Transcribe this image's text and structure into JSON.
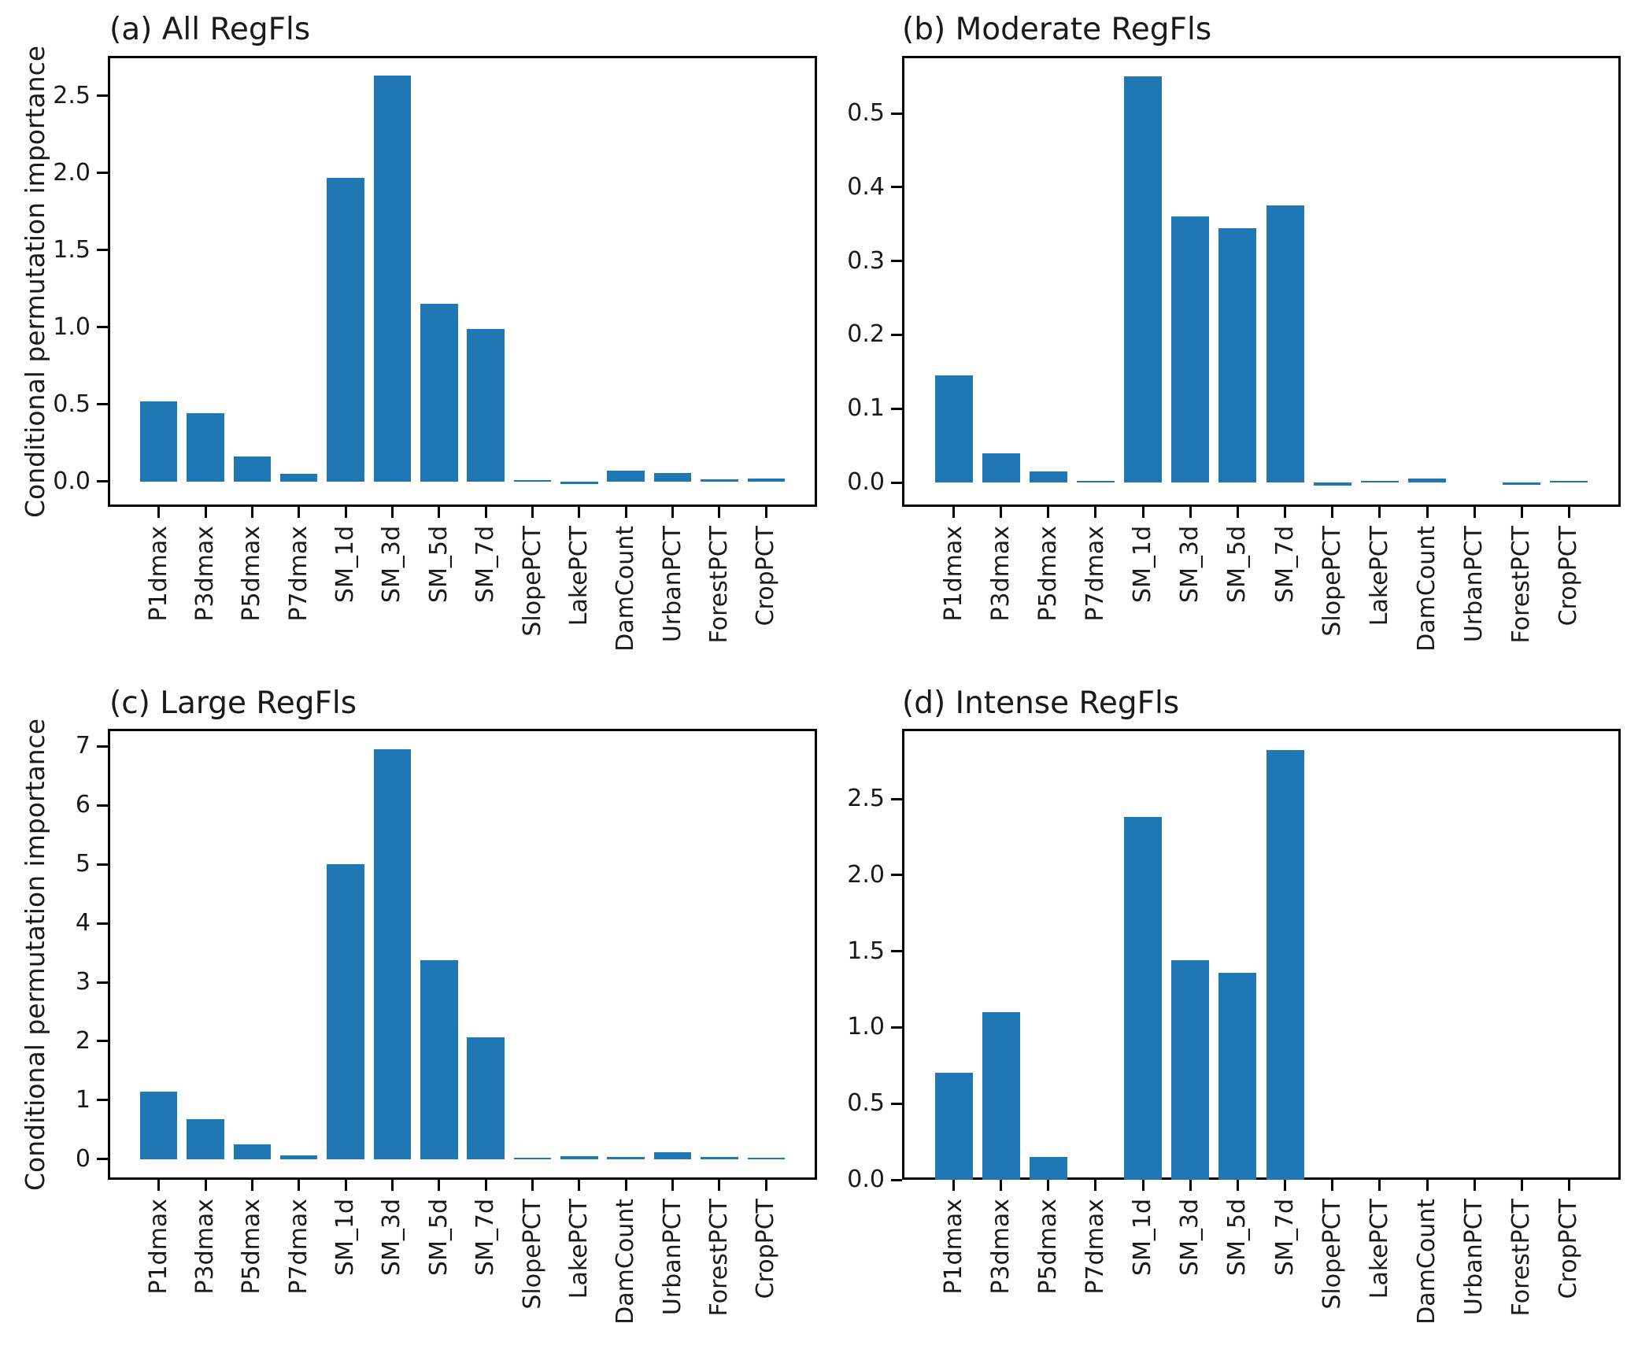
{
  "figure": {
    "kind": "matplotlib-style 2x2 bar chart figure",
    "shared_ylabel": "Conditional permutation importance",
    "bar_color": "#1f77b4",
    "axis_color": "#000000",
    "background_color": "#ffffff"
  },
  "chart_data": [
    {
      "type": "bar",
      "panel": "a",
      "title": "(a) All RegFls",
      "ylabel": "Conditional permutation importance",
      "xlabel": "",
      "legend": null,
      "grid": false,
      "categories": [
        "P1dmax",
        "P3dmax",
        "P5dmax",
        "P7dmax",
        "SM_1d",
        "SM_3d",
        "SM_5d",
        "SM_7d",
        "SlopePCT",
        "LakePCT",
        "DamCount",
        "UrbanPCT",
        "ForestPCT",
        "CropPCT"
      ],
      "values": [
        0.52,
        0.44,
        0.16,
        0.05,
        1.97,
        2.63,
        1.15,
        0.99,
        0.005,
        -0.015,
        0.07,
        0.055,
        0.012,
        0.02
      ],
      "ylim": [
        -0.165,
        2.76
      ],
      "yticks": [
        0.0,
        0.5,
        1.0,
        1.5,
        2.0,
        2.5
      ],
      "ytick_labels": [
        "0.0",
        "0.5",
        "1.0",
        "1.5",
        "2.0",
        "2.5"
      ],
      "bar_color": "#1f77b4"
    },
    {
      "type": "bar",
      "panel": "b",
      "title": "(b) Moderate RegFls",
      "ylabel": "",
      "xlabel": "",
      "legend": null,
      "grid": false,
      "categories": [
        "P1dmax",
        "P3dmax",
        "P5dmax",
        "P7dmax",
        "SM_1d",
        "SM_3d",
        "SM_5d",
        "SM_7d",
        "SlopePCT",
        "LakePCT",
        "DamCount",
        "UrbanPCT",
        "ForestPCT",
        "CropPCT"
      ],
      "values": [
        0.145,
        0.04,
        0.015,
        0.002,
        0.55,
        0.36,
        0.345,
        0.375,
        -0.004,
        0.001,
        0.005,
        0.0,
        -0.003,
        0.001
      ],
      "ylim": [
        -0.033,
        0.578
      ],
      "yticks": [
        0.0,
        0.1,
        0.2,
        0.3,
        0.4,
        0.5
      ],
      "ytick_labels": [
        "0.0",
        "0.1",
        "0.2",
        "0.3",
        "0.4",
        "0.5"
      ],
      "bar_color": "#1f77b4"
    },
    {
      "type": "bar",
      "panel": "c",
      "title": "(c) Large RegFls",
      "ylabel": "Conditional permutation importance",
      "xlabel": "",
      "legend": null,
      "grid": false,
      "categories": [
        "P1dmax",
        "P3dmax",
        "P5dmax",
        "P7dmax",
        "SM_1d",
        "SM_3d",
        "SM_5d",
        "SM_7d",
        "SlopePCT",
        "LakePCT",
        "DamCount",
        "UrbanPCT",
        "ForestPCT",
        "CropPCT"
      ],
      "values": [
        1.15,
        0.68,
        0.25,
        0.06,
        5.0,
        6.95,
        3.38,
        2.07,
        0.01,
        0.05,
        0.035,
        0.12,
        0.035,
        0.008
      ],
      "ylim": [
        -0.35,
        7.3
      ],
      "yticks": [
        0,
        1,
        2,
        3,
        4,
        5,
        6,
        7
      ],
      "ytick_labels": [
        "0",
        "1",
        "2",
        "3",
        "4",
        "5",
        "6",
        "7"
      ],
      "bar_color": "#1f77b4"
    },
    {
      "type": "bar",
      "panel": "d",
      "title": "(d) Intense RegFls",
      "ylabel": "",
      "xlabel": "",
      "legend": null,
      "grid": false,
      "categories": [
        "P1dmax",
        "P3dmax",
        "P5dmax",
        "P7dmax",
        "SM_1d",
        "SM_3d",
        "SM_5d",
        "SM_7d",
        "SlopePCT",
        "LakePCT",
        "DamCount",
        "UrbanPCT",
        "ForestPCT",
        "CropPCT"
      ],
      "values": [
        0.7,
        1.1,
        0.15,
        0.0,
        2.38,
        1.44,
        1.36,
        2.82,
        0.0,
        0.0,
        0.0,
        0.0,
        0.0,
        0.0
      ],
      "ylim": [
        0,
        2.96
      ],
      "yticks": [
        0.0,
        0.5,
        1.0,
        1.5,
        2.0,
        2.5
      ],
      "ytick_labels": [
        "0.0",
        "0.5",
        "1.0",
        "1.5",
        "2.0",
        "2.5"
      ],
      "bar_color": "#1f77b4"
    }
  ]
}
